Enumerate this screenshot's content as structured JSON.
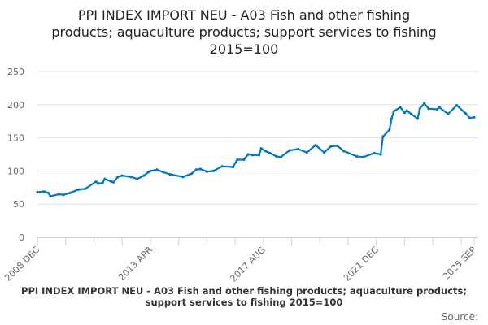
{
  "chart_data": {
    "type": "line",
    "title": [
      "PPI INDEX IMPORT NEU - A03 Fish and other fishing",
      "products; aquaculture products; support services to fishing",
      "2015=100"
    ],
    "xlabel": "",
    "ylabel": "",
    "ylim": [
      0,
      250
    ],
    "yticks": [
      0,
      50,
      100,
      150,
      200,
      250
    ],
    "xlim": [
      "2008-12",
      "2025-09"
    ],
    "xtick_labels": [
      "2008 DEC",
      "2013 APR",
      "2017 AUG",
      "2021 DEC",
      "2025 SEP"
    ],
    "grid": "horizontal",
    "color": "#0077c0",
    "series": [
      {
        "points": [
          [
            "2008-12",
            68
          ],
          [
            "2009-03",
            69
          ],
          [
            "2009-05",
            67
          ],
          [
            "2009-06",
            62
          ],
          [
            "2009-10",
            65
          ],
          [
            "2009-12",
            64
          ],
          [
            "2010-03",
            67
          ],
          [
            "2010-07",
            72
          ],
          [
            "2010-10",
            73
          ],
          [
            "2011-03",
            84
          ],
          [
            "2011-04",
            81
          ],
          [
            "2011-06",
            82
          ],
          [
            "2011-07",
            88
          ],
          [
            "2011-10",
            84
          ],
          [
            "2011-11",
            83
          ],
          [
            "2012-01",
            91
          ],
          [
            "2012-03",
            93
          ],
          [
            "2012-07",
            91
          ],
          [
            "2012-10",
            88
          ],
          [
            "2013-01",
            93
          ],
          [
            "2013-03",
            98
          ],
          [
            "2013-04",
            100
          ],
          [
            "2013-07",
            102
          ],
          [
            "2013-10",
            98
          ],
          [
            "2014-01",
            95
          ],
          [
            "2014-07",
            91
          ],
          [
            "2014-11",
            96
          ],
          [
            "2015-01",
            102
          ],
          [
            "2015-03",
            103
          ],
          [
            "2015-06",
            99
          ],
          [
            "2015-09",
            100
          ],
          [
            "2016-01",
            107
          ],
          [
            "2016-06",
            106
          ],
          [
            "2016-08",
            117
          ],
          [
            "2016-11",
            117
          ],
          [
            "2017-01",
            125
          ],
          [
            "2017-03",
            124
          ],
          [
            "2017-06",
            124
          ],
          [
            "2017-07",
            134
          ],
          [
            "2017-09",
            130
          ],
          [
            "2017-11",
            127
          ],
          [
            "2018-02",
            122
          ],
          [
            "2018-04",
            121
          ],
          [
            "2018-08",
            131
          ],
          [
            "2018-12",
            133
          ],
          [
            "2019-04",
            128
          ],
          [
            "2019-08",
            139
          ],
          [
            "2019-12",
            128
          ],
          [
            "2020-03",
            137
          ],
          [
            "2020-06",
            138
          ],
          [
            "2020-09",
            130
          ],
          [
            "2021-03",
            122
          ],
          [
            "2021-06",
            121
          ],
          [
            "2021-11",
            127
          ],
          [
            "2022-02",
            125
          ],
          [
            "2022-03",
            152
          ],
          [
            "2022-06",
            162
          ],
          [
            "2022-07",
            179
          ],
          [
            "2022-08",
            190
          ],
          [
            "2022-11",
            196
          ],
          [
            "2023-01",
            188
          ],
          [
            "2023-02",
            191
          ],
          [
            "2023-04",
            186
          ],
          [
            "2023-07",
            179
          ],
          [
            "2023-08",
            194
          ],
          [
            "2023-10",
            202
          ],
          [
            "2023-12",
            194
          ],
          [
            "2024-04",
            193
          ],
          [
            "2024-05",
            196
          ],
          [
            "2024-09",
            186
          ],
          [
            "2025-01",
            199
          ],
          [
            "2025-05",
            187
          ],
          [
            "2025-07",
            180
          ],
          [
            "2025-09",
            181
          ]
        ]
      }
    ]
  },
  "footer": {
    "subtitle": "PPI INDEX IMPORT NEU - A03 Fish and other fishing products; aquaculture products; support services to fishing 2015=100",
    "source_label": "Source:"
  }
}
